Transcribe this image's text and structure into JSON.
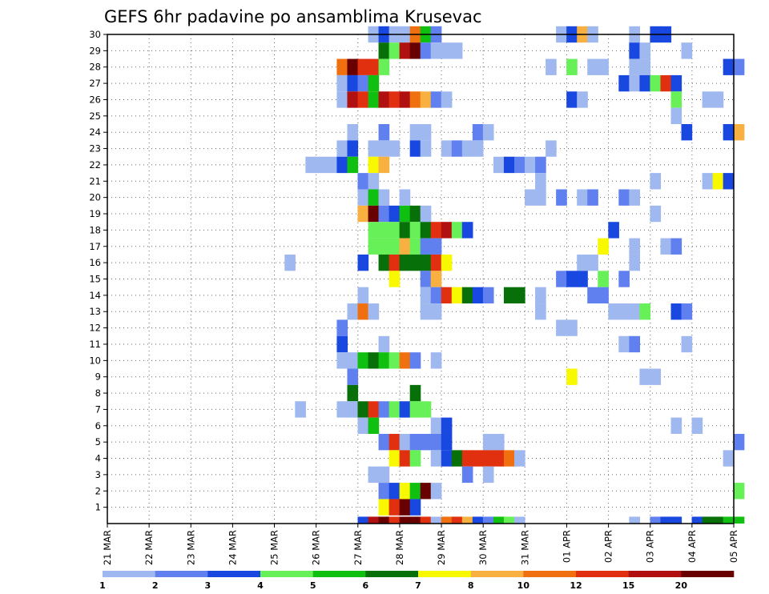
{
  "chart_data": {
    "type": "heatmap",
    "title": "GEFS 6hr padavine po ansamblima Krusevac",
    "xlabel": "",
    "ylabel": "",
    "x_ticks": [
      "21 MAR",
      "22 MAR",
      "23 MAR",
      "24 MAR",
      "25 MAR",
      "26 MAR",
      "27 MAR",
      "28 MAR",
      "29 MAR",
      "30 MAR",
      "31 MAR",
      "01 APR",
      "02 APR",
      "03 APR",
      "04 APR",
      "05 APR"
    ],
    "x_range_days": [
      0,
      15
    ],
    "y_ticks": [
      "1",
      "2",
      "3",
      "4",
      "5",
      "6",
      "7",
      "8",
      "9",
      "10",
      "11",
      "12",
      "13",
      "14",
      "15",
      "16",
      "17",
      "18",
      "19",
      "20",
      "21",
      "22",
      "23",
      "24",
      "25",
      "26",
      "27",
      "28",
      "29",
      "30"
    ],
    "y_range": [
      0,
      30
    ],
    "grid": "dotted",
    "colorbar": {
      "labels": [
        "1",
        "2",
        "3",
        "4",
        "5",
        "6",
        "7",
        "8",
        "10",
        "12",
        "15",
        "20"
      ],
      "colors": [
        "#a0b8f0",
        "#6080f0",
        "#1848e0",
        "#68f058",
        "#10c010",
        "#087008",
        "#f8f800",
        "#f8b040",
        "#f07010",
        "#e03010",
        "#b01010",
        "#680000"
      ]
    },
    "cells": [
      [
        30,
        6.25,
        0
      ],
      [
        30,
        6.5,
        2
      ],
      [
        30,
        6.75,
        0
      ],
      [
        30,
        7,
        0
      ],
      [
        30,
        7.25,
        8
      ],
      [
        30,
        7.5,
        4
      ],
      [
        30,
        7.75,
        1
      ],
      [
        30,
        10.75,
        0
      ],
      [
        30,
        11,
        2
      ],
      [
        30,
        11.25,
        7
      ],
      [
        30,
        11.5,
        0
      ],
      [
        30,
        12.5,
        0
      ],
      [
        30,
        13,
        2
      ],
      [
        30,
        13.25,
        2
      ],
      [
        29,
        6.5,
        5
      ],
      [
        29,
        6.75,
        3
      ],
      [
        29,
        7,
        10
      ],
      [
        29,
        7.25,
        11
      ],
      [
        29,
        7.5,
        1
      ],
      [
        29,
        7.75,
        0
      ],
      [
        29,
        8,
        0
      ],
      [
        29,
        8.25,
        0
      ],
      [
        29,
        12.5,
        2
      ],
      [
        29,
        12.75,
        0
      ],
      [
        29,
        13.75,
        0
      ],
      [
        28,
        5.5,
        8
      ],
      [
        28,
        5.75,
        11
      ],
      [
        28,
        6,
        9
      ],
      [
        28,
        6.25,
        9
      ],
      [
        28,
        6.5,
        3
      ],
      [
        28,
        10.5,
        0
      ],
      [
        28,
        11,
        3
      ],
      [
        28,
        11.5,
        0
      ],
      [
        28,
        11.75,
        0
      ],
      [
        28,
        12.5,
        0
      ],
      [
        28,
        12.75,
        0
      ],
      [
        28,
        14.75,
        2
      ],
      [
        28,
        15,
        1
      ],
      [
        27,
        5.5,
        0
      ],
      [
        27,
        5.75,
        2
      ],
      [
        27,
        6,
        1
      ],
      [
        27,
        6.25,
        4
      ],
      [
        27,
        12.25,
        2
      ],
      [
        27,
        12.5,
        0
      ],
      [
        27,
        12.75,
        2
      ],
      [
        27,
        13,
        3
      ],
      [
        27,
        13.25,
        9
      ],
      [
        27,
        13.5,
        2
      ],
      [
        26,
        5.5,
        0
      ],
      [
        26,
        5.75,
        10
      ],
      [
        26,
        6,
        9
      ],
      [
        26,
        6.25,
        4
      ],
      [
        26,
        6.5,
        10
      ],
      [
        26,
        6.75,
        9
      ],
      [
        26,
        7,
        10
      ],
      [
        26,
        7.25,
        8
      ],
      [
        26,
        7.5,
        7
      ],
      [
        26,
        7.75,
        1
      ],
      [
        26,
        8,
        0
      ],
      [
        26,
        11,
        2
      ],
      [
        26,
        11.25,
        0
      ],
      [
        26,
        13.5,
        3
      ],
      [
        26,
        14.25,
        0
      ],
      [
        26,
        14.5,
        0
      ],
      [
        25,
        13.5,
        0
      ],
      [
        24,
        5.75,
        0
      ],
      [
        24,
        6.5,
        1
      ],
      [
        24,
        7.25,
        0
      ],
      [
        24,
        7.5,
        0
      ],
      [
        24,
        8.75,
        1
      ],
      [
        24,
        9,
        0
      ],
      [
        24,
        13.75,
        2
      ],
      [
        24,
        14.75,
        2
      ],
      [
        24,
        15,
        7
      ],
      [
        23,
        5.5,
        0
      ],
      [
        23,
        5.75,
        2
      ],
      [
        23,
        6.25,
        0
      ],
      [
        23,
        6.5,
        0
      ],
      [
        23,
        6.75,
        0
      ],
      [
        23,
        7.25,
        2
      ],
      [
        23,
        7.5,
        0
      ],
      [
        23,
        8,
        0
      ],
      [
        23,
        8.25,
        1
      ],
      [
        23,
        8.5,
        0
      ],
      [
        23,
        8.75,
        0
      ],
      [
        23,
        10.5,
        0
      ],
      [
        22,
        4.75,
        0
      ],
      [
        22,
        5,
        0
      ],
      [
        22,
        5.25,
        0
      ],
      [
        22,
        5.5,
        2
      ],
      [
        22,
        5.75,
        4
      ],
      [
        22,
        6.25,
        6
      ],
      [
        22,
        6.5,
        7
      ],
      [
        22,
        9.25,
        0
      ],
      [
        22,
        9.5,
        2
      ],
      [
        22,
        9.75,
        1
      ],
      [
        22,
        10,
        0
      ],
      [
        22,
        10.25,
        1
      ],
      [
        21,
        6,
        1
      ],
      [
        21,
        6.25,
        0
      ],
      [
        21,
        10.25,
        0
      ],
      [
        21,
        13,
        0
      ],
      [
        21,
        14.25,
        0
      ],
      [
        21,
        14.5,
        6
      ],
      [
        21,
        14.75,
        2
      ],
      [
        20,
        6,
        0
      ],
      [
        20,
        6.25,
        4
      ],
      [
        20,
        6.5,
        0
      ],
      [
        20,
        7,
        0
      ],
      [
        20,
        10,
        0
      ],
      [
        20,
        10.25,
        0
      ],
      [
        20,
        10.75,
        1
      ],
      [
        20,
        11.25,
        0
      ],
      [
        20,
        11.5,
        1
      ],
      [
        20,
        12.25,
        1
      ],
      [
        20,
        12.5,
        0
      ],
      [
        19,
        6,
        7
      ],
      [
        19,
        6.25,
        11
      ],
      [
        19,
        6.5,
        1
      ],
      [
        19,
        6.75,
        2
      ],
      [
        19,
        7,
        4
      ],
      [
        19,
        7.25,
        5
      ],
      [
        19,
        7.5,
        0
      ],
      [
        19,
        13,
        0
      ],
      [
        18,
        6.25,
        3
      ],
      [
        18,
        6.5,
        3
      ],
      [
        18,
        6.75,
        3
      ],
      [
        18,
        7,
        5
      ],
      [
        18,
        7.25,
        3
      ],
      [
        18,
        7.5,
        5
      ],
      [
        18,
        7.75,
        9
      ],
      [
        18,
        8,
        10
      ],
      [
        18,
        8.25,
        3
      ],
      [
        18,
        8.5,
        2
      ],
      [
        18,
        12,
        2
      ],
      [
        17,
        6.25,
        3
      ],
      [
        17,
        6.5,
        3
      ],
      [
        17,
        6.75,
        3
      ],
      [
        17,
        7,
        7
      ],
      [
        17,
        7.25,
        3
      ],
      [
        17,
        7.5,
        1
      ],
      [
        17,
        7.75,
        1
      ],
      [
        17,
        11.75,
        6
      ],
      [
        17,
        12.5,
        0
      ],
      [
        17,
        13.25,
        0
      ],
      [
        17,
        13.5,
        1
      ],
      [
        16,
        4.25,
        0
      ],
      [
        16,
        6,
        2
      ],
      [
        16,
        6.5,
        5
      ],
      [
        16,
        6.75,
        9
      ],
      [
        16,
        7,
        5
      ],
      [
        16,
        7.25,
        5
      ],
      [
        16,
        7.5,
        5
      ],
      [
        16,
        7.75,
        9
      ],
      [
        16,
        8,
        6
      ],
      [
        16,
        11.25,
        0
      ],
      [
        16,
        11.5,
        0
      ],
      [
        16,
        12.5,
        0
      ],
      [
        15,
        6.75,
        6
      ],
      [
        15,
        7.5,
        1
      ],
      [
        15,
        7.75,
        7
      ],
      [
        15,
        10.75,
        1
      ],
      [
        15,
        11,
        2
      ],
      [
        15,
        11.25,
        2
      ],
      [
        15,
        11.75,
        3
      ],
      [
        15,
        12.25,
        1
      ],
      [
        14,
        6,
        0
      ],
      [
        14,
        7.5,
        0
      ],
      [
        14,
        7.75,
        1
      ],
      [
        14,
        8,
        9
      ],
      [
        14,
        8.25,
        6
      ],
      [
        14,
        8.5,
        5
      ],
      [
        14,
        8.75,
        2
      ],
      [
        14,
        9,
        1
      ],
      [
        14,
        9.5,
        5
      ],
      [
        14,
        9.75,
        5
      ],
      [
        14,
        10.25,
        0
      ],
      [
        14,
        11.5,
        1
      ],
      [
        14,
        11.75,
        1
      ],
      [
        13,
        5.75,
        0
      ],
      [
        13,
        6,
        8
      ],
      [
        13,
        6.25,
        0
      ],
      [
        13,
        7.5,
        0
      ],
      [
        13,
        7.75,
        0
      ],
      [
        13,
        10.25,
        0
      ],
      [
        13,
        12,
        0
      ],
      [
        13,
        12.25,
        0
      ],
      [
        13,
        12.5,
        0
      ],
      [
        13,
        12.75,
        3
      ],
      [
        13,
        13.5,
        2
      ],
      [
        13,
        13.75,
        1
      ],
      [
        12,
        5.5,
        1
      ],
      [
        12,
        10.75,
        0
      ],
      [
        12,
        11,
        0
      ],
      [
        11,
        5.5,
        2
      ],
      [
        11,
        6.5,
        0
      ],
      [
        11,
        12.25,
        0
      ],
      [
        11,
        12.5,
        1
      ],
      [
        11,
        13.75,
        0
      ],
      [
        10,
        5.5,
        0
      ],
      [
        10,
        5.75,
        0
      ],
      [
        10,
        6,
        4
      ],
      [
        10,
        6.25,
        5
      ],
      [
        10,
        6.5,
        4
      ],
      [
        10,
        6.75,
        3
      ],
      [
        10,
        7,
        8
      ],
      [
        10,
        7.25,
        1
      ],
      [
        10,
        7.75,
        0
      ],
      [
        9,
        5.75,
        1
      ],
      [
        9,
        11,
        6
      ],
      [
        9,
        12.75,
        0
      ],
      [
        9,
        13,
        0
      ],
      [
        8,
        5.75,
        5
      ],
      [
        8,
        7.25,
        5
      ],
      [
        7,
        4.5,
        0
      ],
      [
        7,
        5.5,
        0
      ],
      [
        7,
        5.75,
        0
      ],
      [
        7,
        6,
        5
      ],
      [
        7,
        6.25,
        9
      ],
      [
        7,
        6.5,
        1
      ],
      [
        7,
        6.75,
        3
      ],
      [
        7,
        7,
        2
      ],
      [
        7,
        7.25,
        3
      ],
      [
        7,
        7.5,
        3
      ],
      [
        6,
        6,
        0
      ],
      [
        6,
        6.25,
        4
      ],
      [
        6,
        7.75,
        0
      ],
      [
        6,
        8,
        2
      ],
      [
        6,
        13.5,
        0
      ],
      [
        6,
        14,
        0
      ],
      [
        5,
        6.5,
        1
      ],
      [
        5,
        6.75,
        9
      ],
      [
        5,
        7,
        0
      ],
      [
        5,
        7.25,
        1
      ],
      [
        5,
        7.5,
        1
      ],
      [
        5,
        7.75,
        1
      ],
      [
        5,
        8,
        2
      ],
      [
        5,
        9,
        0
      ],
      [
        5,
        9.25,
        0
      ],
      [
        5,
        15,
        1
      ],
      [
        4,
        6.75,
        6
      ],
      [
        4,
        7,
        9
      ],
      [
        4,
        7.25,
        3
      ],
      [
        4,
        7.75,
        0
      ],
      [
        4,
        8,
        2
      ],
      [
        4,
        8.25,
        5
      ],
      [
        4,
        8.5,
        9
      ],
      [
        4,
        8.75,
        9
      ],
      [
        4,
        9,
        9
      ],
      [
        4,
        9.25,
        9
      ],
      [
        4,
        9.5,
        8
      ],
      [
        4,
        9.75,
        0
      ],
      [
        4,
        14.75,
        0
      ],
      [
        3,
        6.25,
        0
      ],
      [
        3,
        6.5,
        0
      ],
      [
        3,
        8.5,
        1
      ],
      [
        3,
        9,
        0
      ],
      [
        2,
        6.5,
        1
      ],
      [
        2,
        6.75,
        2
      ],
      [
        2,
        7,
        6
      ],
      [
        2,
        7.25,
        4
      ],
      [
        2,
        7.5,
        11
      ],
      [
        2,
        7.75,
        0
      ],
      [
        2,
        15,
        3
      ],
      [
        1,
        6.5,
        6
      ],
      [
        1,
        6.75,
        9
      ],
      [
        1,
        7,
        11
      ],
      [
        1,
        7.25,
        2
      ],
      [
        0,
        6,
        2
      ],
      [
        0,
        6.25,
        10
      ],
      [
        0,
        6.5,
        11
      ],
      [
        0,
        6.75,
        9
      ],
      [
        0,
        7,
        11
      ],
      [
        0,
        7.25,
        11
      ],
      [
        0,
        7.5,
        9
      ],
      [
        0,
        7.75,
        0
      ],
      [
        0,
        8,
        8
      ],
      [
        0,
        8.25,
        9
      ],
      [
        0,
        8.5,
        7
      ],
      [
        0,
        8.75,
        2
      ],
      [
        0,
        9,
        1
      ],
      [
        0,
        9.25,
        4
      ],
      [
        0,
        9.5,
        3
      ],
      [
        0,
        9.75,
        0
      ],
      [
        0,
        12.5,
        0
      ],
      [
        0,
        13,
        1
      ],
      [
        0,
        13.25,
        2
      ],
      [
        0,
        13.5,
        2
      ],
      [
        0,
        14,
        2
      ],
      [
        0,
        14.25,
        5
      ],
      [
        0,
        14.5,
        5
      ],
      [
        0,
        14.75,
        4
      ],
      [
        0,
        15,
        4
      ]
    ]
  }
}
